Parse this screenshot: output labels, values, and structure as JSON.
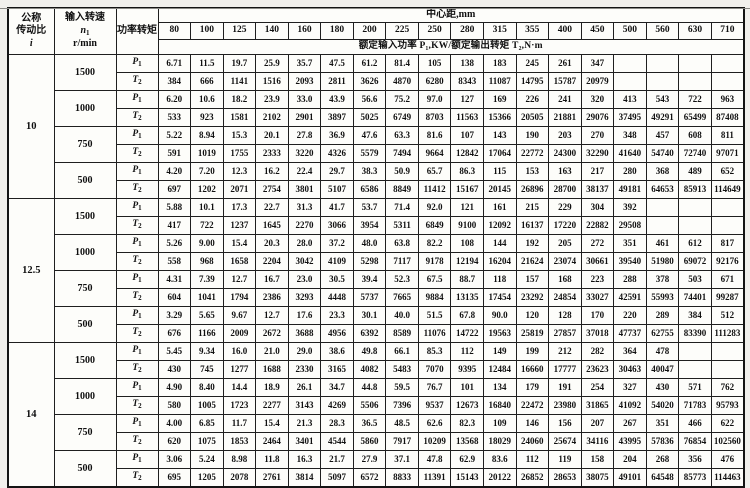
{
  "table": {
    "header": {
      "ratio_line1": "公称",
      "ratio_line2": "传动比",
      "ratio_symbol": "i",
      "speed_label": "输入转速",
      "speed_symbol": "n",
      "speed_symbol_sub": "1",
      "speed_unit": "r/min",
      "power_torque_label": "功率转矩",
      "center_distance_label": "中心距,mm",
      "center_distances": [
        "80",
        "100",
        "125",
        "140",
        "160",
        "180",
        "200",
        "225",
        "250",
        "280",
        "315",
        "355",
        "400",
        "450",
        "500",
        "560",
        "630",
        "710"
      ],
      "subheader": "额定输入功率 P₁,KW/额定输出转矩 T₂,N·m"
    },
    "row_symbols": {
      "power": "P",
      "power_sub": "1",
      "torque": "T",
      "torque_sub": "2"
    },
    "groups": [
      {
        "ratio": "10",
        "speeds": [
          {
            "n1": "1500",
            "P1": [
              "6.71",
              "11.5",
              "19.7",
              "25.9",
              "35.7",
              "47.5",
              "61.2",
              "81.4",
              "105",
              "138",
              "183",
              "245",
              "261",
              "347",
              "",
              "",
              "",
              ""
            ],
            "T2": [
              "384",
              "666",
              "1141",
              "1516",
              "2093",
              "2811",
              "3626",
              "4870",
              "6280",
              "8343",
              "11087",
              "14795",
              "15787",
              "20979",
              "",
              "",
              "",
              ""
            ]
          },
          {
            "n1": "1000",
            "P1": [
              "6.20",
              "10.6",
              "18.2",
              "23.9",
              "33.0",
              "43.9",
              "56.6",
              "75.2",
              "97.0",
              "127",
              "169",
              "226",
              "241",
              "320",
              "413",
              "543",
              "722",
              "963"
            ],
            "T2": [
              "533",
              "923",
              "1581",
              "2102",
              "2901",
              "3897",
              "5025",
              "6749",
              "8703",
              "11563",
              "15366",
              "20505",
              "21881",
              "29076",
              "37495",
              "49291",
              "65499",
              "87408"
            ]
          },
          {
            "n1": "750",
            "P1": [
              "5.22",
              "8.94",
              "15.3",
              "20.1",
              "27.8",
              "36.9",
              "47.6",
              "63.3",
              "81.6",
              "107",
              "143",
              "190",
              "203",
              "270",
              "348",
              "457",
              "608",
              "811"
            ],
            "T2": [
              "591",
              "1019",
              "1755",
              "2333",
              "3220",
              "4326",
              "5579",
              "7494",
              "9664",
              "12842",
              "17064",
              "22772",
              "24300",
              "32290",
              "41640",
              "54740",
              "72740",
              "97071"
            ]
          },
          {
            "n1": "500",
            "P1": [
              "4.20",
              "7.20",
              "12.3",
              "16.2",
              "22.4",
              "29.7",
              "38.3",
              "50.9",
              "65.7",
              "86.3",
              "115",
              "153",
              "163",
              "217",
              "280",
              "368",
              "489",
              "652"
            ],
            "T2": [
              "697",
              "1202",
              "2071",
              "2754",
              "3801",
              "5107",
              "6586",
              "8849",
              "11412",
              "15167",
              "20145",
              "26896",
              "28700",
              "38137",
              "49181",
              "64653",
              "85913",
              "114649"
            ]
          }
        ]
      },
      {
        "ratio": "12.5",
        "speeds": [
          {
            "n1": "1500",
            "P1": [
              "5.88",
              "10.1",
              "17.3",
              "22.7",
              "31.3",
              "41.7",
              "53.7",
              "71.4",
              "92.0",
              "121",
              "161",
              "215",
              "229",
              "304",
              "392",
              "",
              "",
              ""
            ],
            "T2": [
              "417",
              "722",
              "1237",
              "1645",
              "2270",
              "3066",
              "3954",
              "5311",
              "6849",
              "9100",
              "12092",
              "16137",
              "17220",
              "22882",
              "29508",
              "",
              "",
              ""
            ]
          },
          {
            "n1": "1000",
            "P1": [
              "5.26",
              "9.00",
              "15.4",
              "20.3",
              "28.0",
              "37.2",
              "48.0",
              "63.8",
              "82.2",
              "108",
              "144",
              "192",
              "205",
              "272",
              "351",
              "461",
              "612",
              "817"
            ],
            "T2": [
              "558",
              "968",
              "1658",
              "2204",
              "3042",
              "4109",
              "5298",
              "7117",
              "9178",
              "12194",
              "16204",
              "21624",
              "23074",
              "30661",
              "39540",
              "51980",
              "69072",
              "92176"
            ]
          },
          {
            "n1": "750",
            "P1": [
              "4.31",
              "7.39",
              "12.7",
              "16.7",
              "23.0",
              "30.5",
              "39.4",
              "52.3",
              "67.5",
              "88.7",
              "118",
              "157",
              "168",
              "223",
              "288",
              "378",
              "503",
              "671"
            ],
            "T2": [
              "604",
              "1041",
              "1794",
              "2386",
              "3293",
              "4448",
              "5737",
              "7665",
              "9884",
              "13135",
              "17454",
              "23292",
              "24854",
              "33027",
              "42591",
              "55993",
              "74401",
              "99287"
            ]
          },
          {
            "n1": "500",
            "P1": [
              "3.29",
              "5.65",
              "9.67",
              "12.7",
              "17.6",
              "23.3",
              "30.1",
              "40.0",
              "51.5",
              "67.8",
              "90.0",
              "120",
              "128",
              "170",
              "220",
              "289",
              "384",
              "512"
            ],
            "T2": [
              "676",
              "1166",
              "2009",
              "2672",
              "3688",
              "4956",
              "6392",
              "8589",
              "11076",
              "14722",
              "19563",
              "25819",
              "27857",
              "37018",
              "47737",
              "62755",
              "83390",
              "111283"
            ]
          }
        ]
      },
      {
        "ratio": "14",
        "speeds": [
          {
            "n1": "1500",
            "P1": [
              "5.45",
              "9.34",
              "16.0",
              "21.0",
              "29.0",
              "38.6",
              "49.8",
              "66.1",
              "85.3",
              "112",
              "149",
              "199",
              "212",
              "282",
              "364",
              "478",
              "",
              ""
            ],
            "T2": [
              "430",
              "745",
              "1277",
              "1688",
              "2330",
              "3165",
              "4082",
              "5483",
              "7070",
              "9395",
              "12484",
              "16660",
              "17777",
              "23623",
              "30463",
              "40047",
              "",
              ""
            ]
          },
          {
            "n1": "1000",
            "P1": [
              "4.90",
              "8.40",
              "14.4",
              "18.9",
              "26.1",
              "34.7",
              "44.8",
              "59.5",
              "76.7",
              "101",
              "134",
              "179",
              "191",
              "254",
              "327",
              "430",
              "571",
              "762"
            ],
            "T2": [
              "580",
              "1005",
              "1723",
              "2277",
              "3143",
              "4269",
              "5506",
              "7396",
              "9537",
              "12673",
              "16840",
              "22472",
              "23980",
              "31865",
              "41092",
              "54020",
              "71783",
              "95793"
            ]
          },
          {
            "n1": "750",
            "P1": [
              "4.00",
              "6.85",
              "11.7",
              "15.4",
              "21.3",
              "28.3",
              "36.5",
              "48.5",
              "62.6",
              "82.3",
              "109",
              "146",
              "156",
              "207",
              "267",
              "351",
              "466",
              "622"
            ],
            "T2": [
              "620",
              "1075",
              "1853",
              "2464",
              "3401",
              "4544",
              "5860",
              "7917",
              "10209",
              "13568",
              "18029",
              "24060",
              "25674",
              "34116",
              "43995",
              "57836",
              "76854",
              "102560"
            ]
          },
          {
            "n1": "500",
            "P1": [
              "3.06",
              "5.24",
              "8.98",
              "11.8",
              "16.3",
              "21.7",
              "27.9",
              "37.1",
              "47.8",
              "62.9",
              "83.6",
              "112",
              "119",
              "158",
              "204",
              "268",
              "356",
              "476"
            ],
            "T2": [
              "695",
              "1205",
              "2078",
              "2761",
              "3814",
              "5097",
              "6572",
              "8833",
              "11391",
              "15143",
              "20122",
              "26852",
              "28653",
              "38075",
              "49101",
              "64548",
              "85773",
              "114463"
            ]
          }
        ]
      }
    ]
  }
}
